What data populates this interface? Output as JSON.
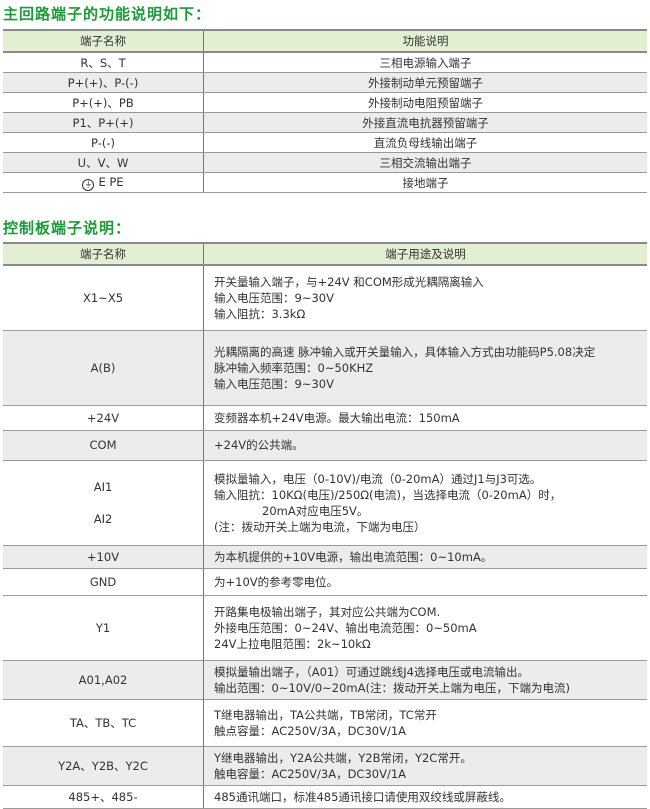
{
  "main_circuit": {
    "title": "主回路端子的功能说明如下：",
    "headers": [
      "端子名称",
      "功能说明"
    ],
    "rows": [
      {
        "name": "R、S、T",
        "desc": "三相电源输入端子"
      },
      {
        "name": "P+(+)、P-(-)",
        "desc": "外接制动单元预留端子"
      },
      {
        "name": "P+(+)、PB",
        "desc": "外接制动电阻预留端子"
      },
      {
        "name": "P1、P+(+)",
        "desc": "外接直流电抗器预留端子"
      },
      {
        "name": "P-(-)",
        "desc": "直流负母线输出端子"
      },
      {
        "name": "U、V、W",
        "desc": "三相交流输出端子"
      },
      {
        "name": "E PE",
        "desc": "接地端子",
        "icon": "ground-icon"
      }
    ]
  },
  "control_board": {
    "title": "控制板端子说明：",
    "headers": [
      "端子名称",
      "端子用途及说明"
    ],
    "rows": [
      {
        "name": "X1~X5",
        "lines": [
          "开关量输入端子，与+24V 和COM形成光耦隔离输入",
          "输入电压范围：9~30V",
          "输入阻抗：3.3kΩ"
        ]
      },
      {
        "name": "A(B)",
        "lines": [
          "光耦隔离的高速 脉冲输入或开关量输入，具体输入方式由功能码P5.08决定",
          "脉冲输入频率范围：0~50KHZ",
          "输入电压范围：9~30V"
        ]
      },
      {
        "name": "+24V",
        "lines": [
          "变频器本机+24V电源。最大输出电流：150mA"
        ]
      },
      {
        "name": "COM",
        "lines": [
          "+24V的公共端。"
        ]
      },
      {
        "name": "AI1",
        "name2": "AI2",
        "lines": [
          "模拟量输入，电压（0-10V)/电流（0-20mA）通过J1与J3可选。",
          "输入阻抗：10KΩ(电压)/250Ω(电流)，当选择电流（0-20mA）时，",
          "20mA对应电压5V。",
          "(注：拨动开关上端为电流，下端为电压）"
        ]
      },
      {
        "name": "+10V",
        "lines": [
          "为本机提供的+10V电源，输出电流范围：0~10mA。"
        ]
      },
      {
        "name": "GND",
        "lines": [
          "为+10V的参考零电位。"
        ]
      },
      {
        "name": "Y1",
        "lines": [
          "开路集电极输出端子，其对应公共端为COM.",
          "外接电压范围：0~24V、输出电流范围：0~50mA",
          "24V上拉电阻范围：2k~10kΩ"
        ]
      },
      {
        "name": "A01,A02",
        "lines": [
          "模拟量输出端子，（A01）可通过跳线J4选择电压或电流输出。",
          "输出范围：0~10V/0~20mA(注：拨动开关上端为电压，下端为电流)"
        ]
      },
      {
        "name": "TA、TB、TC",
        "lines": [
          "T继电器输出，TA公共端，TB常闭，TC常开",
          "触点容量：AC250V/3A，DC30V/1A"
        ]
      },
      {
        "name": "Y2A、Y2B、Y2C",
        "lines": [
          "Y继电器输出，Y2A公共端，Y2B常闭，Y2C常开。",
          "触电容量：AC250V/3A，DC30V/1A"
        ]
      },
      {
        "name": "485+、485-",
        "lines": [
          "485通讯端口，标准485通讯接口请使用双绞线或屏蔽线。"
        ]
      }
    ]
  },
  "colors": {
    "title": "#1e9a3a",
    "header_bg": "#e3efd3",
    "alt_row": "#ececec"
  }
}
